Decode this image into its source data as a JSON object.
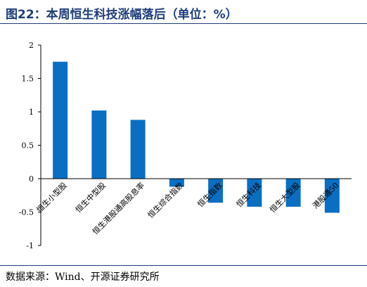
{
  "figure": {
    "title": "图22：本周恒生科技涨幅落后（单位：%）",
    "source": "数据来源：Wind、开源证券研究所"
  },
  "colors": {
    "bar": "#0a6fc2",
    "axis": "#000000",
    "rule": "#1f3d7a",
    "title": "#1f3d7a"
  },
  "chart_data": {
    "type": "bar",
    "title": "",
    "xlabel": "",
    "ylabel": "",
    "categories": [
      "恒生小型股",
      "恒生中型股",
      "恒生港股通高股息率",
      "恒生综合指数",
      "恒生指数",
      "恒生科技",
      "恒生大型股",
      "港股通50"
    ],
    "values": [
      1.75,
      1.02,
      0.88,
      -0.12,
      -0.36,
      -0.42,
      -0.42,
      -0.51
    ],
    "ylim": [
      -1,
      2
    ],
    "yticks": [
      "-1",
      "-0.5",
      "0",
      "0.5",
      "1",
      "1.5",
      "2"
    ],
    "ytick_values": [
      -1,
      -0.5,
      0,
      0.5,
      1,
      1.5,
      2
    ],
    "grid": false,
    "legend": "none"
  }
}
